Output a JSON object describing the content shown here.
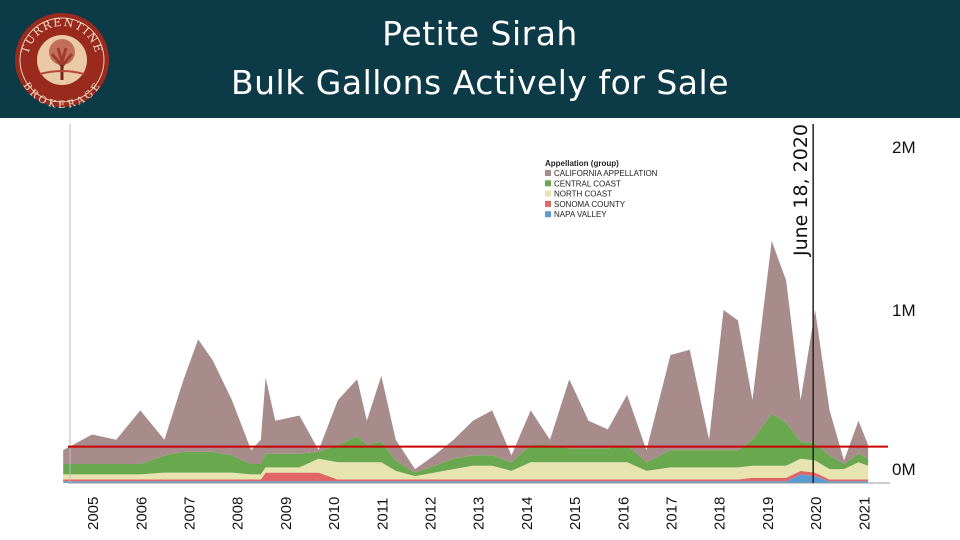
{
  "header": {
    "title_line1": "Petite Sirah",
    "title_line2": "Bulk Gallons Actively for Sale",
    "logo_text_top": "TURRENTINE",
    "logo_text_bottom": "BROKERAGE"
  },
  "chart_data": {
    "type": "area",
    "stacked": true,
    "title": "Petite Sirah Bulk Gallons Actively for Sale",
    "legend_title": "Appellation (group)",
    "legend_position": "top-center",
    "x_ticks": [
      "2005",
      "2006",
      "2007",
      "2008",
      "2009",
      "2010",
      "2011",
      "2012",
      "2013",
      "2014",
      "2015",
      "2016",
      "2017",
      "2018",
      "2019",
      "2020",
      "2021"
    ],
    "y_ticks": [
      "0M",
      "1M",
      "2M"
    ],
    "ylim": [
      0,
      2.0
    ],
    "y_unit": "million gallons",
    "x": [
      2004.9,
      2005.5,
      2006.0,
      2006.5,
      2007.0,
      2007.4,
      2007.7,
      2008.0,
      2008.4,
      2008.8,
      2009.0,
      2009.1,
      2009.3,
      2009.8,
      2010.2,
      2010.6,
      2011.0,
      2011.2,
      2011.5,
      2011.8,
      2012.2,
      2012.6,
      2013.0,
      2013.4,
      2013.8,
      2014.2,
      2014.6,
      2015.0,
      2015.4,
      2015.8,
      2016.2,
      2016.6,
      2017.0,
      2017.5,
      2017.9,
      2018.3,
      2018.6,
      2018.9,
      2019.2,
      2019.6,
      2019.9,
      2020.2,
      2020.5,
      2020.8,
      2021.1,
      2021.4,
      2021.6
    ],
    "series": [
      {
        "name": "NAPA VALLEY",
        "color": "#5b9bd5",
        "values": [
          0.01,
          0.01,
          0.01,
          0.01,
          0.01,
          0.01,
          0.01,
          0.01,
          0.01,
          0.01,
          0.01,
          0.01,
          0.01,
          0.01,
          0.01,
          0.01,
          0.01,
          0.01,
          0.01,
          0.01,
          0.01,
          0.01,
          0.01,
          0.01,
          0.01,
          0.01,
          0.01,
          0.01,
          0.01,
          0.01,
          0.01,
          0.01,
          0.01,
          0.01,
          0.01,
          0.01,
          0.01,
          0.01,
          0.01,
          0.01,
          0.01,
          0.05,
          0.04,
          0.01,
          0.01,
          0.01,
          0.01
        ]
      },
      {
        "name": "SONOMA COUNTY",
        "color": "#e06666",
        "values": [
          0.01,
          0.01,
          0.01,
          0.01,
          0.01,
          0.01,
          0.01,
          0.01,
          0.01,
          0.01,
          0.01,
          0.05,
          0.05,
          0.05,
          0.05,
          0.01,
          0.01,
          0.01,
          0.01,
          0.01,
          0.01,
          0.01,
          0.01,
          0.01,
          0.01,
          0.01,
          0.01,
          0.01,
          0.01,
          0.01,
          0.01,
          0.01,
          0.01,
          0.01,
          0.01,
          0.01,
          0.01,
          0.01,
          0.02,
          0.02,
          0.02,
          0.02,
          0.02,
          0.01,
          0.01,
          0.01,
          0.01
        ]
      },
      {
        "name": "NORTH COAST",
        "color": "#e8e4b0",
        "values": [
          0.03,
          0.03,
          0.03,
          0.03,
          0.04,
          0.04,
          0.04,
          0.04,
          0.04,
          0.03,
          0.03,
          0.03,
          0.03,
          0.03,
          0.08,
          0.1,
          0.1,
          0.1,
          0.1,
          0.05,
          0.02,
          0.04,
          0.06,
          0.08,
          0.08,
          0.05,
          0.1,
          0.1,
          0.1,
          0.1,
          0.1,
          0.1,
          0.05,
          0.07,
          0.07,
          0.07,
          0.07,
          0.07,
          0.07,
          0.07,
          0.07,
          0.07,
          0.07,
          0.06,
          0.06,
          0.1,
          0.08
        ]
      },
      {
        "name": "CENTRAL COAST",
        "color": "#6aa84f",
        "values": [
          0.06,
          0.06,
          0.06,
          0.06,
          0.1,
          0.12,
          0.12,
          0.12,
          0.1,
          0.06,
          0.06,
          0.08,
          0.08,
          0.08,
          0.04,
          0.1,
          0.15,
          0.1,
          0.12,
          0.06,
          0.02,
          0.04,
          0.06,
          0.06,
          0.06,
          0.05,
          0.1,
          0.1,
          0.08,
          0.08,
          0.08,
          0.1,
          0.05,
          0.1,
          0.1,
          0.1,
          0.1,
          0.1,
          0.15,
          0.3,
          0.25,
          0.1,
          0.1,
          0.08,
          0.03,
          0.05,
          0.04
        ]
      },
      {
        "name": "CALIFORNIA APPELLATION",
        "color": "#a88c8c",
        "values": [
          0.08,
          0.17,
          0.14,
          0.31,
          0.09,
          0.42,
          0.65,
          0.53,
          0.32,
          0.08,
          0.14,
          0.44,
          0.19,
          0.22,
          0.01,
          0.26,
          0.33,
          0.14,
          0.38,
          0.12,
          0.02,
          0.06,
          0.11,
          0.2,
          0.26,
          0.04,
          0.2,
          0.03,
          0.4,
          0.16,
          0.11,
          0.29,
          0.07,
          0.55,
          0.58,
          0.06,
          0.81,
          0.75,
          0.23,
          1.0,
          0.82,
          0.24,
          0.77,
          0.26,
          0.02,
          0.19,
          0.08
        ]
      }
    ],
    "reference_line": {
      "value": 0.21,
      "color": "#cc0000"
    },
    "annotation": {
      "label": "June 18, 2020",
      "x": 2020.46
    }
  }
}
